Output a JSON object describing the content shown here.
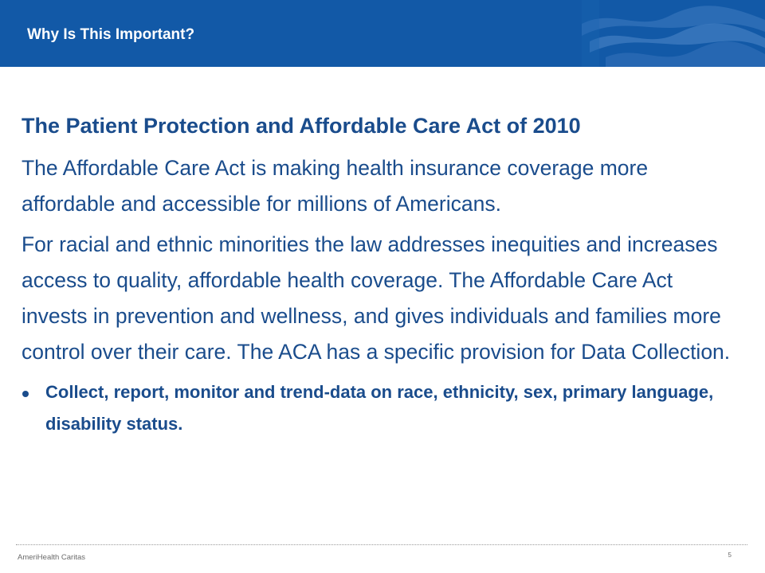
{
  "header": {
    "title": "Why Is This Important?"
  },
  "main": {
    "heading": "The Patient Protection and Affordable Care Act of 2010",
    "paragraphs": [
      "The Affordable Care Act is making health insurance coverage more affordable and accessible for millions of Americans.",
      "For racial and ethnic minorities the law addresses inequities and increases access to quality, affordable health coverage.  The Affordable Care Act invests in prevention and wellness, and gives individuals and families more control over their care. The ACA has a specific provision for Data Collection."
    ],
    "bullets": [
      "Collect, report, monitor and trend-data on race, ethnicity, sex, primary language, disability status."
    ]
  },
  "footer": {
    "logo_text": "AmeriHealth Caritas",
    "page_number": "5"
  },
  "colors": {
    "header_bg": "#1259a7",
    "text_blue": "#1a4c8c"
  }
}
